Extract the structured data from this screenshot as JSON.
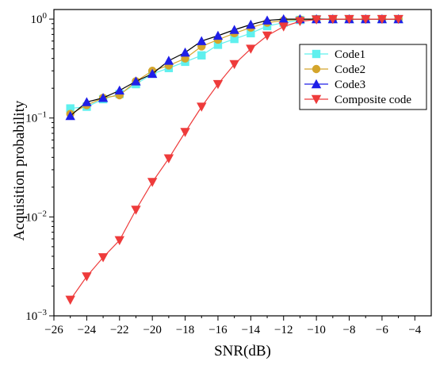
{
  "chart_data": {
    "type": "line",
    "xlabel": "SNR(dB)",
    "ylabel": "Acquisition probability",
    "xlim": [
      -26,
      -3
    ],
    "ylim": [
      0.001,
      1.25
    ],
    "yscale": "log",
    "grid": false,
    "legend_position": "right",
    "x_ticks": [
      -26,
      -24,
      -22,
      -20,
      -18,
      -16,
      -14,
      -12,
      -10,
      -8,
      -6,
      -4
    ],
    "x_tick_labels": [
      "−26",
      "−24",
      "−22",
      "−20",
      "−18",
      "−16",
      "−14",
      "−12",
      "−10",
      "−8",
      "−6",
      "−4"
    ],
    "y_ticks": [
      1,
      0.1,
      0.01,
      0.001
    ],
    "x": [
      -25,
      -24,
      -23,
      -22,
      -21,
      -20,
      -19,
      -18,
      -17,
      -16,
      -15,
      -14,
      -13,
      -12,
      -11,
      -10,
      -9,
      -8,
      -7,
      -6,
      -5
    ],
    "series": [
      {
        "name": "Code1",
        "color": "#5ff0ee",
        "marker": "square",
        "values": [
          0.125,
          0.13,
          0.155,
          0.175,
          0.22,
          0.28,
          0.32,
          0.37,
          0.43,
          0.55,
          0.63,
          0.72,
          0.85,
          0.92,
          0.98,
          1.0,
          1.0,
          1.0,
          1.0,
          1.0,
          1.0
        ]
      },
      {
        "name": "Code2",
        "color": "#d4a52c",
        "marker": "circle",
        "values": [
          0.11,
          0.135,
          0.16,
          0.17,
          0.235,
          0.3,
          0.34,
          0.4,
          0.53,
          0.62,
          0.72,
          0.82,
          0.92,
          0.97,
          0.99,
          1.0,
          1.0,
          1.0,
          1.0,
          1.0,
          1.0
        ]
      },
      {
        "name": "Code3",
        "color": "#1f1fe8",
        "marker": "triangle-up",
        "values": [
          0.105,
          0.145,
          0.16,
          0.19,
          0.235,
          0.28,
          0.38,
          0.46,
          0.6,
          0.68,
          0.78,
          0.88,
          0.97,
          1.0,
          1.0,
          1.0,
          1.0,
          1.0,
          1.0,
          1.0,
          1.0
        ]
      },
      {
        "name": "Composite code",
        "color": "#ee3b3b",
        "marker": "triangle-down",
        "values": [
          0.00145,
          0.0025,
          0.0039,
          0.0058,
          0.0118,
          0.0225,
          0.039,
          0.072,
          0.13,
          0.22,
          0.35,
          0.5,
          0.68,
          0.84,
          0.95,
          0.99,
          1.0,
          1.0,
          1.0,
          1.0,
          1.0
        ]
      }
    ]
  }
}
